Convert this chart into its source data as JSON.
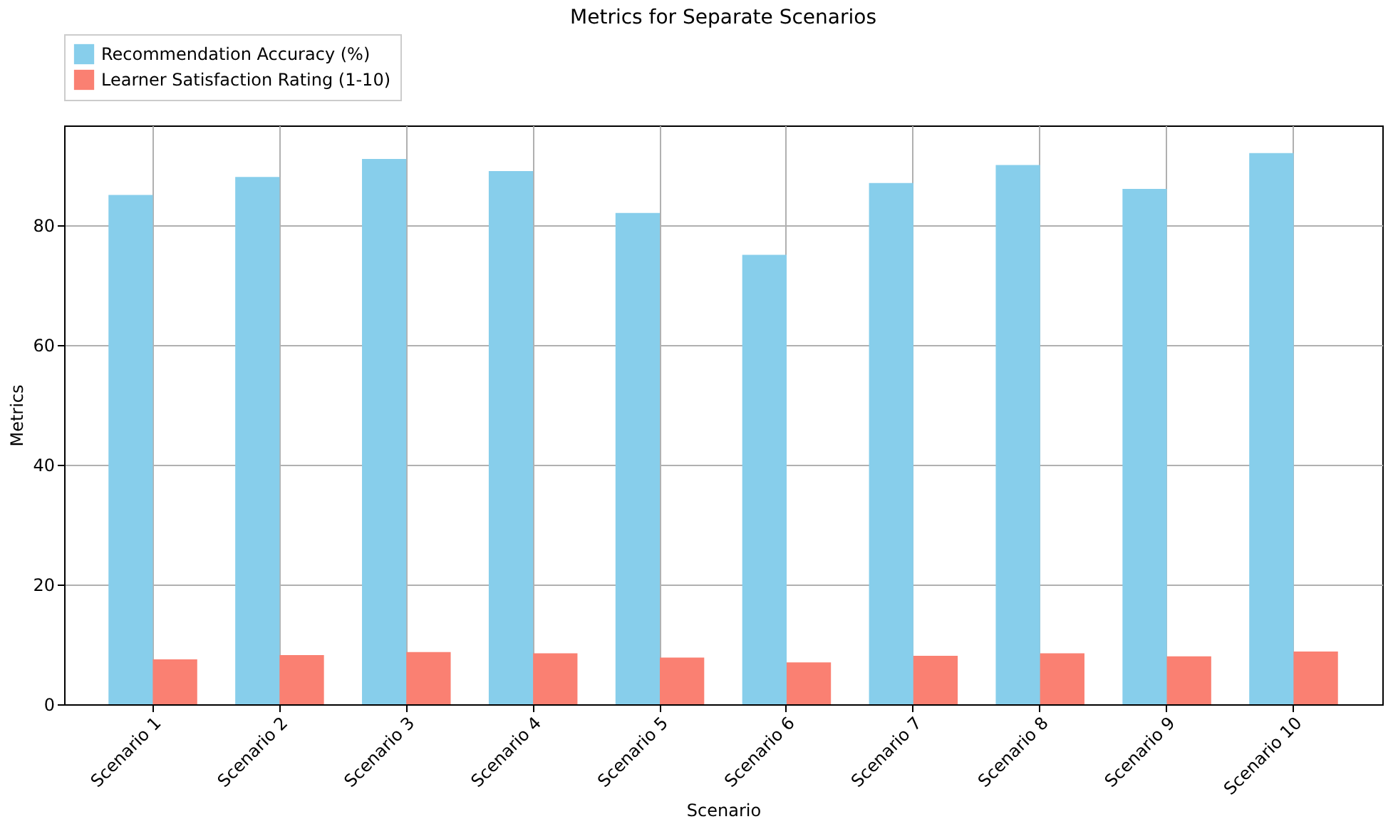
{
  "chart_data": {
    "type": "bar",
    "title": "Metrics for Separate Scenarios",
    "xlabel": "Scenario",
    "ylabel": "Metrics",
    "categories": [
      "Scenario 1",
      "Scenario 2",
      "Scenario 3",
      "Scenario 4",
      "Scenario 5",
      "Scenario 6",
      "Scenario 7",
      "Scenario 8",
      "Scenario 9",
      "Scenario 10"
    ],
    "series": [
      {
        "name": "Recommendation Accuracy (%)",
        "color": "#87ceeb",
        "values": [
          85,
          88,
          91,
          89,
          82,
          75,
          87,
          90,
          86,
          92
        ]
      },
      {
        "name": "Learner Satisfaction Rating (1-10)",
        "color": "#fa8072",
        "values": [
          7.5,
          8.2,
          8.7,
          8.5,
          7.8,
          7.0,
          8.1,
          8.5,
          8.0,
          8.8
        ]
      }
    ],
    "ylim": [
      0,
      96.6
    ],
    "yticks": [
      0,
      20,
      40,
      60,
      80
    ],
    "grid": true,
    "legend": "top left"
  }
}
